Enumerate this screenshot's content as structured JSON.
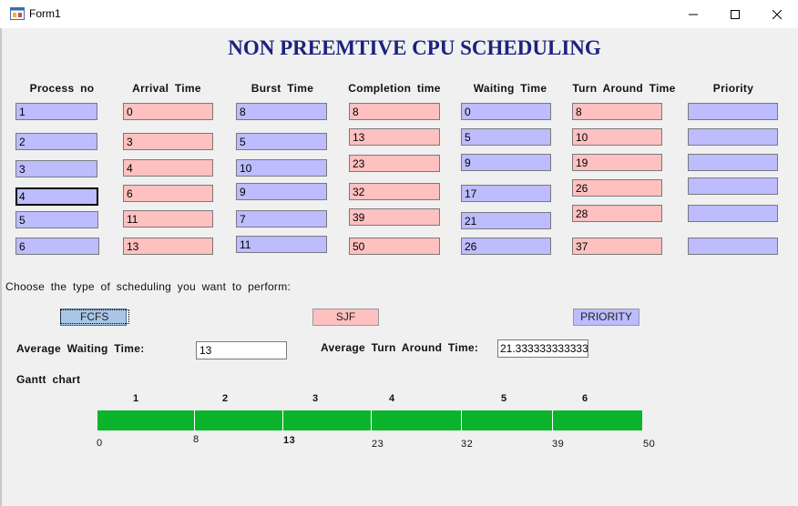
{
  "window": {
    "title": "Form1",
    "icons": {
      "app": "form-icon",
      "minimize": "minimize-icon",
      "maximize": "maximize-icon",
      "close": "close-icon"
    }
  },
  "heading": "NON PREEMTIVE CPU SCHEDULING",
  "columns": [
    "Process  no",
    "Arrival  Time",
    "Burst  Time",
    "Completion  time",
    "Waiting  Time",
    "Turn  Around  Time",
    "Priority"
  ],
  "table": {
    "process_no": [
      "1",
      "2",
      "3",
      "4",
      "5",
      "6"
    ],
    "arrival_time": [
      "0",
      "3",
      "4",
      "6",
      "11",
      "13"
    ],
    "burst_time": [
      "8",
      "5",
      "10",
      "9",
      "7",
      "11"
    ],
    "completion_time": [
      "8",
      "13",
      "23",
      "32",
      "39",
      "50"
    ],
    "waiting_time": [
      "0",
      "5",
      "9",
      "17",
      "21",
      "26"
    ],
    "turn_around_time": [
      "8",
      "10",
      "19",
      "26",
      "28",
      "37"
    ],
    "priority": [
      "",
      "",
      "",
      "",
      "",
      ""
    ]
  },
  "choose_label": "Choose  the  type  of  scheduling  you  want  to  perform:",
  "buttons": {
    "fcfs": "FCFS",
    "sjf": "SJF",
    "priority": "PRIORITY"
  },
  "averages": {
    "waiting_label": "Average  Waiting  Time:",
    "waiting_value": "13",
    "turnaround_label": "Average  Turn  Around  Time:",
    "turnaround_value": "21.3333333333333"
  },
  "gantt": {
    "label": "Gantt  chart",
    "bar_color": "#0bb52b",
    "processes": [
      "1",
      "2",
      "3",
      "4",
      "5",
      "6"
    ],
    "times": [
      "0",
      "8",
      "13",
      "23",
      "32",
      "39",
      "50"
    ]
  }
}
